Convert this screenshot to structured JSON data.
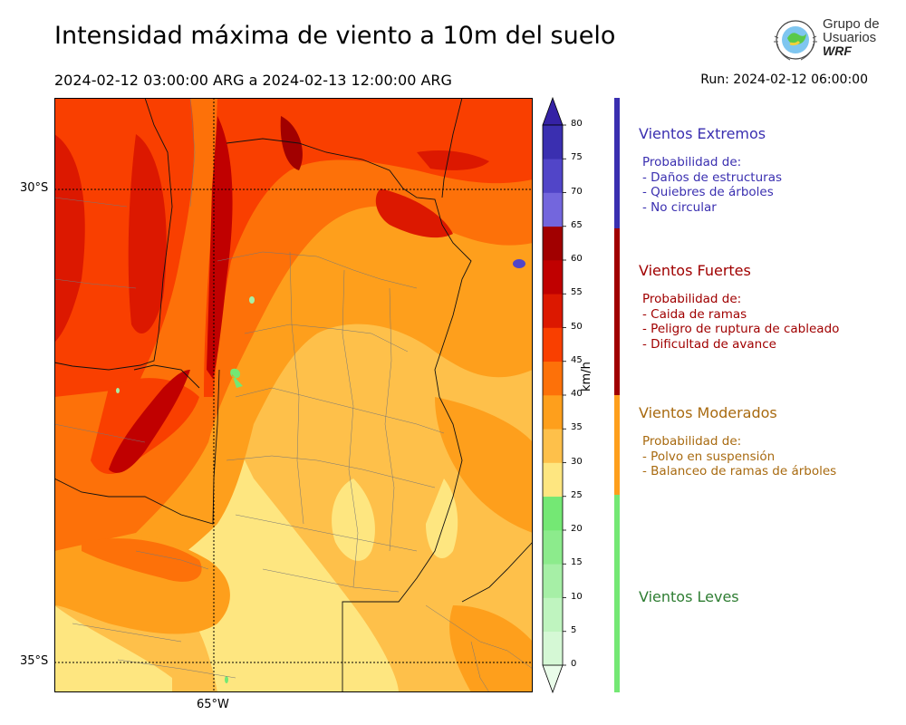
{
  "header": {
    "title": "Intensidad máxima de viento a 10m del suelo",
    "period": "2024-02-12 03:00:00 ARG  a  2024-02-13 12:00:00 ARG",
    "run": "Run: 2024-02-12 06:00:00"
  },
  "logo": {
    "line1": "Grupo de",
    "line2": "Usuarios",
    "line3": "WRF"
  },
  "map": {
    "lat_labels": [
      "30°S",
      "35°S"
    ],
    "lon_labels": [
      "65°W"
    ]
  },
  "colorbar": {
    "units": "km/h",
    "ticks": [
      "0",
      "5",
      "10",
      "15",
      "20",
      "25",
      "30",
      "35",
      "40",
      "45",
      "50",
      "55",
      "60",
      "65",
      "70",
      "75",
      "80"
    ],
    "colors": [
      "#e9fce9",
      "#d5f8d5",
      "#bff4bf",
      "#a6efa6",
      "#8ceb8c",
      "#74e874",
      "#fee680",
      "#fec04a",
      "#fe9f1c",
      "#fd7109",
      "#f93f00",
      "#dc1800",
      "#c00000",
      "#a10000",
      "#7366dd",
      "#5145c8",
      "#3a2fb0",
      "#3522a5"
    ]
  },
  "categories": [
    {
      "title": "Vientos Extremos",
      "color": "#3a2fb0",
      "lines": [
        "Probabilidad de:",
        "- Daños de estructuras",
        "- Quiebres de árboles",
        "- No circular"
      ]
    },
    {
      "title": "Vientos Fuertes",
      "color": "#a00000",
      "lines": [
        "Probabilidad de:",
        "- Caida de ramas",
        "- Peligro de ruptura de cableado",
        "- Dificultad de avance"
      ]
    },
    {
      "title": "Vientos Moderados",
      "color": "#a86a10",
      "bar_color": "#fe9f1c",
      "lines": [
        "Probabilidad de:",
        "- Polvo en suspensión",
        "- Balanceo de ramas de árboles"
      ]
    },
    {
      "title": "Vientos Leves",
      "color": "#2e7d32",
      "bar_color": "#74e874",
      "lines": []
    }
  ]
}
